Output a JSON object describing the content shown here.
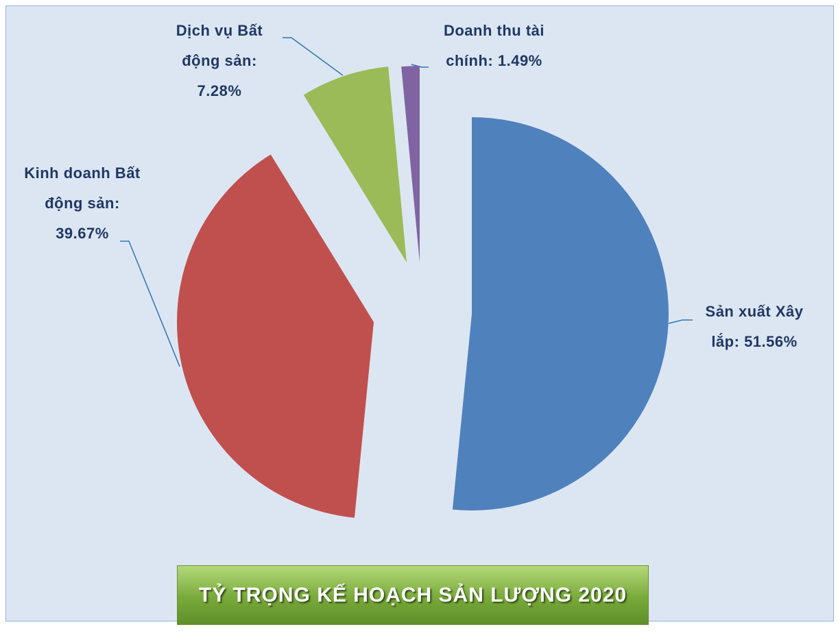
{
  "chart_data": {
    "type": "pie",
    "title": "TỶ TRỌNG KẾ HOẠCH SẢN LƯỢNG 2020",
    "categories": [
      "Sản xuất Xây lắp:",
      "Kinh doanh Bất động sản:",
      "Dịch vụ Bất động sản:",
      "Doanh thu tài chính:"
    ],
    "values": [
      51.56,
      39.67,
      7.28,
      1.49
    ],
    "value_labels": [
      "51.56%",
      "39.67%",
      "7.28%",
      "1.49%"
    ],
    "colors": [
      "#4f81bd",
      "#c0504d",
      "#9bbb59",
      "#8064a2"
    ]
  }
}
